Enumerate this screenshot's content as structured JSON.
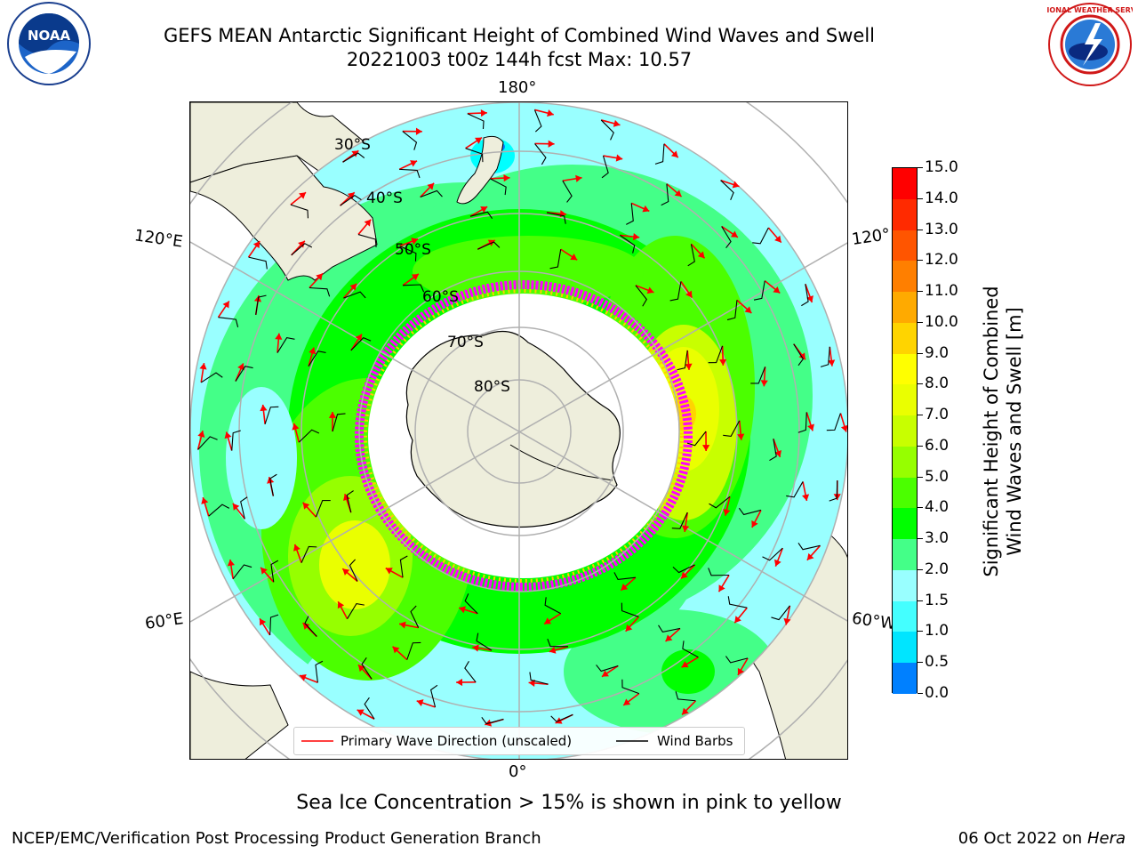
{
  "header": {
    "title_line1": "GEFS MEAN Antarctic Significant Height of Combined Wind Waves and Swell",
    "title_line2": "20221003 t00z 144h fcst   Max: 10.57"
  },
  "logos": {
    "left": {
      "icon": "noaa-logo",
      "text": "NOAA"
    },
    "right": {
      "icon": "nws-logo",
      "text": "NATIONAL WEATHER SERVICE"
    }
  },
  "map": {
    "projection": "south-polar-stereographic",
    "colors": {
      "land": "#eeeedc",
      "ocean_low": "#00ffff",
      "coast": "#000000",
      "grid": "#b0b0b0",
      "wave_arrow": "#ff0000",
      "barb": "#000000",
      "ice_low": "#ff00ff",
      "ice_high": "#ffcc00"
    },
    "lon_labels": {
      "top": "180°",
      "bottom": "0°",
      "upper_left": "120°E",
      "lower_left": "60°E",
      "upper_right": "120°",
      "lower_right": "60°W"
    },
    "lat_labels": [
      "30°S",
      "40°S",
      "50°S",
      "60°S",
      "70°S",
      "80°S"
    ],
    "legend": {
      "wave_label": "Primary Wave Direction (unscaled)",
      "barb_label": "Wind Barbs"
    }
  },
  "colorbar": {
    "label_line1": "Significant Height of Combined",
    "label_line2": "Wind Waves and Swell [m]",
    "ticks": [
      "15.0",
      "14.0",
      "13.0",
      "12.0",
      "11.0",
      "10.0",
      "9.0",
      "8.0",
      "7.0",
      "6.0",
      "5.0",
      "4.0",
      "3.0",
      "2.0",
      "1.5",
      "1.0",
      "0.5",
      "0.0"
    ],
    "colors": [
      "#ff0000",
      "#ff2a00",
      "#ff5500",
      "#ff7f00",
      "#ffaa00",
      "#ffd400",
      "#ffff00",
      "#eaff00",
      "#c8ff00",
      "#96ff00",
      "#4bff00",
      "#00ff00",
      "#44ff88",
      "#99ffff",
      "#44ffff",
      "#00e5ff",
      "#0080ff",
      "#0000ff"
    ]
  },
  "note": "Sea Ice Concentration > 15% is shown in pink to yellow",
  "footer": {
    "left": "NCEP/EMC/Verification Post Processing Product Generation Branch",
    "date": "06 Oct 2022 on ",
    "host": "Hera"
  }
}
